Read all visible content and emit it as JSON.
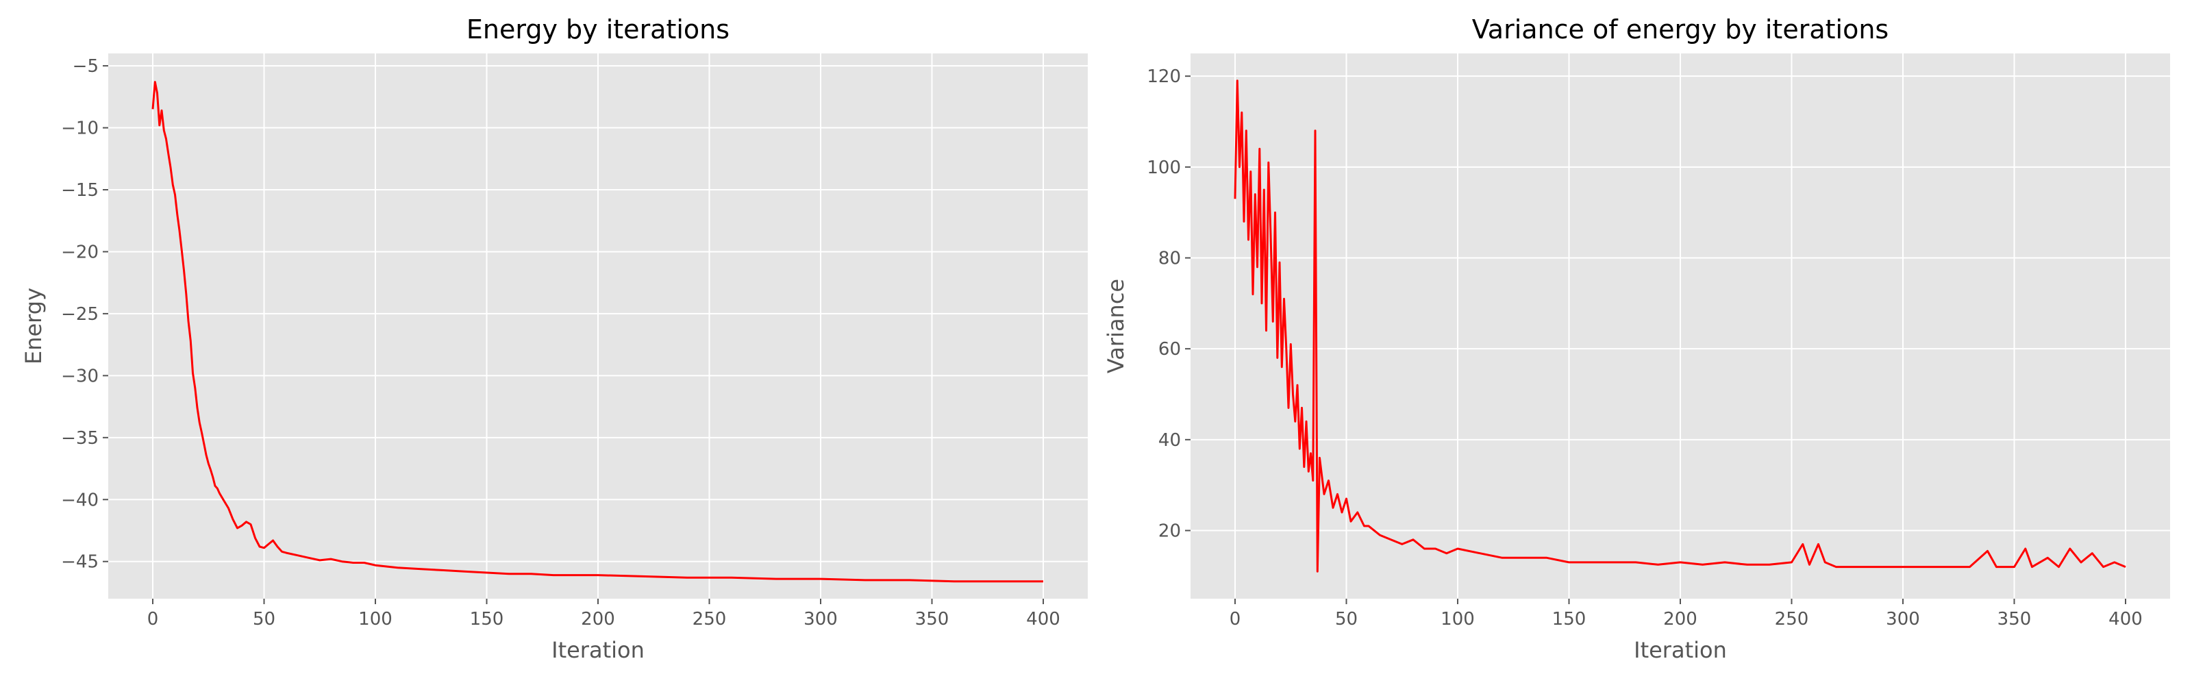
{
  "chart_data": [
    {
      "type": "line",
      "title": "Energy by iterations",
      "xlabel": "Iteration",
      "ylabel": "Energy",
      "xlim": [
        -20,
        420
      ],
      "ylim": [
        -48.0,
        -4.0
      ],
      "xticks": [
        0,
        50,
        100,
        150,
        200,
        250,
        300,
        350,
        400
      ],
      "yticks": [
        -45,
        -40,
        -35,
        -30,
        -25,
        -20,
        -15,
        -10,
        -5
      ],
      "grid": true,
      "legend": "none",
      "series": [
        {
          "color": "#ff0000",
          "points": [
            [
              0,
              -8.5
            ],
            [
              1,
              -6.3
            ],
            [
              2,
              -7.2
            ],
            [
              3,
              -9.8
            ],
            [
              4,
              -8.6
            ],
            [
              5,
              -10.2
            ],
            [
              6,
              -10.9
            ],
            [
              7,
              -12.1
            ],
            [
              8,
              -13.2
            ],
            [
              9,
              -14.6
            ],
            [
              10,
              -15.4
            ],
            [
              11,
              -17.0
            ],
            [
              12,
              -18.3
            ],
            [
              13,
              -19.9
            ],
            [
              14,
              -21.5
            ],
            [
              15,
              -23.4
            ],
            [
              16,
              -25.6
            ],
            [
              17,
              -27.2
            ],
            [
              18,
              -29.8
            ],
            [
              19,
              -31.0
            ],
            [
              20,
              -32.6
            ],
            [
              21,
              -33.8
            ],
            [
              22,
              -34.6
            ],
            [
              23,
              -35.5
            ],
            [
              24,
              -36.4
            ],
            [
              25,
              -37.1
            ],
            [
              26,
              -37.6
            ],
            [
              27,
              -38.2
            ],
            [
              28,
              -38.9
            ],
            [
              29,
              -39.1
            ],
            [
              30,
              -39.5
            ],
            [
              32,
              -40.1
            ],
            [
              34,
              -40.7
            ],
            [
              36,
              -41.6
            ],
            [
              38,
              -42.3
            ],
            [
              40,
              -42.1
            ],
            [
              42,
              -41.8
            ],
            [
              44,
              -42.0
            ],
            [
              46,
              -43.1
            ],
            [
              48,
              -43.8
            ],
            [
              50,
              -43.9
            ],
            [
              52,
              -43.6
            ],
            [
              54,
              -43.3
            ],
            [
              56,
              -43.8
            ],
            [
              58,
              -44.2
            ],
            [
              60,
              -44.3
            ],
            [
              65,
              -44.5
            ],
            [
              70,
              -44.7
            ],
            [
              75,
              -44.9
            ],
            [
              80,
              -44.8
            ],
            [
              85,
              -45.0
            ],
            [
              90,
              -45.1
            ],
            [
              95,
              -45.1
            ],
            [
              100,
              -45.3
            ],
            [
              110,
              -45.5
            ],
            [
              120,
              -45.6
            ],
            [
              130,
              -45.7
            ],
            [
              140,
              -45.8
            ],
            [
              150,
              -45.9
            ],
            [
              160,
              -46.0
            ],
            [
              170,
              -46.0
            ],
            [
              180,
              -46.1
            ],
            [
              190,
              -46.1
            ],
            [
              200,
              -46.1
            ],
            [
              220,
              -46.2
            ],
            [
              240,
              -46.3
            ],
            [
              260,
              -46.3
            ],
            [
              280,
              -46.4
            ],
            [
              300,
              -46.4
            ],
            [
              320,
              -46.5
            ],
            [
              340,
              -46.5
            ],
            [
              360,
              -46.6
            ],
            [
              380,
              -46.6
            ],
            [
              400,
              -46.6
            ]
          ]
        }
      ]
    },
    {
      "type": "line",
      "title": "Variance of energy by iterations",
      "xlabel": "Iteration",
      "ylabel": "Variance",
      "xlim": [
        -20,
        420
      ],
      "ylim": [
        5,
        125
      ],
      "xticks": [
        0,
        50,
        100,
        150,
        200,
        250,
        300,
        350,
        400
      ],
      "yticks": [
        20,
        40,
        60,
        80,
        100,
        120
      ],
      "grid": true,
      "legend": "none",
      "series": [
        {
          "color": "#ff0000",
          "points": [
            [
              0,
              93
            ],
            [
              1,
              119
            ],
            [
              2,
              100
            ],
            [
              3,
              112
            ],
            [
              4,
              88
            ],
            [
              5,
              108
            ],
            [
              6,
              84
            ],
            [
              7,
              99
            ],
            [
              8,
              72
            ],
            [
              9,
              94
            ],
            [
              10,
              78
            ],
            [
              11,
              104
            ],
            [
              12,
              70
            ],
            [
              13,
              95
            ],
            [
              14,
              64
            ],
            [
              15,
              101
            ],
            [
              16,
              85
            ],
            [
              17,
              66
            ],
            [
              18,
              90
            ],
            [
              19,
              58
            ],
            [
              20,
              79
            ],
            [
              21,
              56
            ],
            [
              22,
              71
            ],
            [
              23,
              60
            ],
            [
              24,
              47
            ],
            [
              25,
              61
            ],
            [
              26,
              50
            ],
            [
              27,
              44
            ],
            [
              28,
              52
            ],
            [
              29,
              38
            ],
            [
              30,
              47
            ],
            [
              31,
              34
            ],
            [
              32,
              44
            ],
            [
              33,
              33
            ],
            [
              34,
              37
            ],
            [
              35,
              31
            ],
            [
              36,
              108
            ],
            [
              37,
              11
            ],
            [
              38,
              36
            ],
            [
              40,
              28
            ],
            [
              42,
              31
            ],
            [
              44,
              25
            ],
            [
              46,
              28
            ],
            [
              48,
              24
            ],
            [
              50,
              27
            ],
            [
              52,
              22
            ],
            [
              55,
              24
            ],
            [
              58,
              21
            ],
            [
              60,
              21
            ],
            [
              65,
              19
            ],
            [
              70,
              18
            ],
            [
              75,
              17
            ],
            [
              80,
              18
            ],
            [
              85,
              16
            ],
            [
              90,
              16
            ],
            [
              95,
              15
            ],
            [
              100,
              16
            ],
            [
              110,
              15
            ],
            [
              120,
              14
            ],
            [
              130,
              14
            ],
            [
              140,
              14
            ],
            [
              150,
              13
            ],
            [
              160,
              13
            ],
            [
              170,
              13
            ],
            [
              180,
              13
            ],
            [
              190,
              12.5
            ],
            [
              200,
              13
            ],
            [
              210,
              12.5
            ],
            [
              220,
              13
            ],
            [
              230,
              12.5
            ],
            [
              240,
              12.5
            ],
            [
              250,
              13
            ],
            [
              255,
              17
            ],
            [
              258,
              12.5
            ],
            [
              262,
              17
            ],
            [
              265,
              13
            ],
            [
              270,
              12
            ],
            [
              280,
              12
            ],
            [
              290,
              12
            ],
            [
              300,
              12
            ],
            [
              310,
              12
            ],
            [
              320,
              12
            ],
            [
              330,
              12
            ],
            [
              338,
              15.5
            ],
            [
              342,
              12
            ],
            [
              350,
              12
            ],
            [
              355,
              16
            ],
            [
              358,
              12
            ],
            [
              365,
              14
            ],
            [
              370,
              12
            ],
            [
              375,
              16
            ],
            [
              380,
              13
            ],
            [
              385,
              15
            ],
            [
              390,
              12
            ],
            [
              395,
              13
            ],
            [
              400,
              12
            ]
          ]
        }
      ]
    }
  ]
}
